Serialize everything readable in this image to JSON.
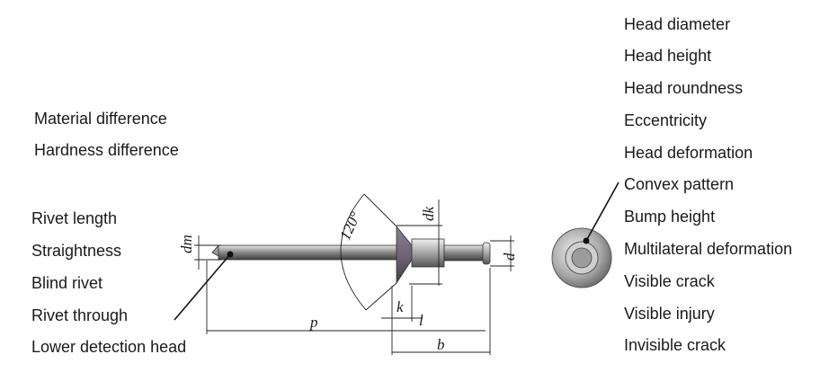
{
  "left_labels_top": [
    "Material difference",
    "Hardness difference"
  ],
  "left_labels_bottom": [
    "Rivet length",
    "Straightness",
    "Blind rivet",
    "Rivet through",
    "Lower detection head"
  ],
  "right_labels": [
    "Head diameter",
    "Head height",
    "Head roundness",
    "Eccentricity",
    "Head deformation",
    "Convex pattern",
    "Bump height",
    "Multilateral deformation",
    "Visible crack",
    "Visible injury",
    "Invisible crack"
  ],
  "dimensions": {
    "dm": "dm",
    "angle": "120°",
    "dk": "dk",
    "d": "d",
    "k": "k",
    "l": "l",
    "p": "p",
    "b": "b"
  },
  "colors": {
    "text": "#1a1a1a",
    "metal": "#9a9a9a",
    "head": "#6f6575"
  }
}
